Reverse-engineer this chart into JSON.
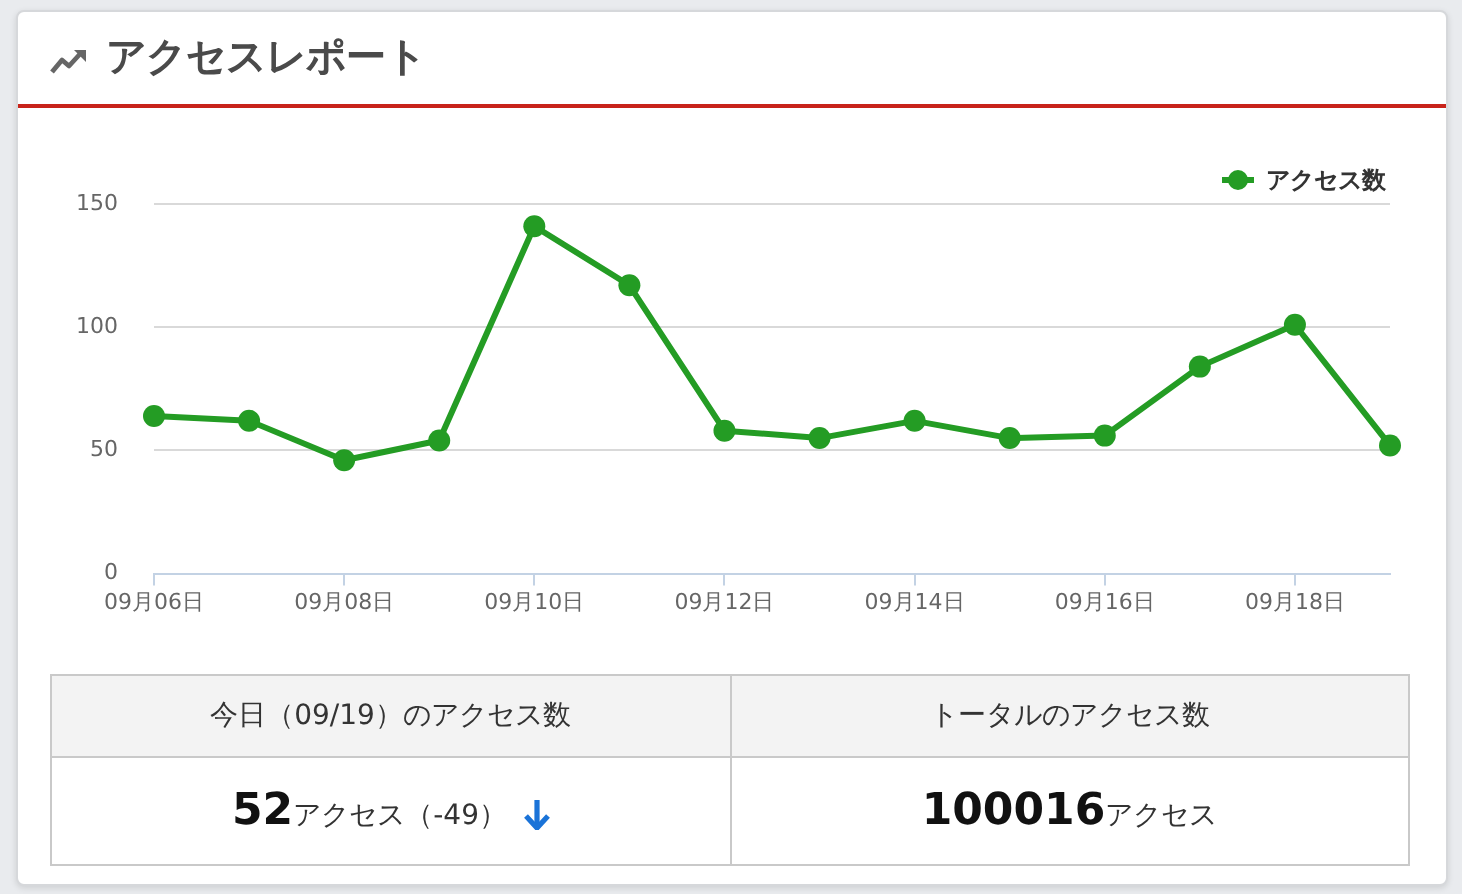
{
  "chart_data": [
    {
      "type": "line",
      "title": "アクセスレポート",
      "categories": [
        "09月06日",
        null,
        "09月08日",
        null,
        "09月10日",
        null,
        "09月12日",
        null,
        "09月14日",
        null,
        "09月16日",
        null,
        "09月18日",
        null
      ],
      "series": [
        {
          "name": "アクセス数",
          "color": "#249c24",
          "values": [
            64,
            62,
            46,
            54,
            141,
            117,
            58,
            55,
            62,
            55,
            56,
            84,
            101,
            52
          ]
        }
      ],
      "ylim": [
        0,
        150
      ],
      "yticks": [
        0,
        50,
        100,
        150
      ],
      "grid": "y",
      "legend": "top right",
      "marker": "circle",
      "line_style": "solid"
    },
    {
      "type": "other",
      "annotations": [
        "今日（09/19）のアクセス数",
        "トータルのアクセス数",
        "52アクセス（-49）",
        "100016アクセス"
      ]
    }
  ]
}
